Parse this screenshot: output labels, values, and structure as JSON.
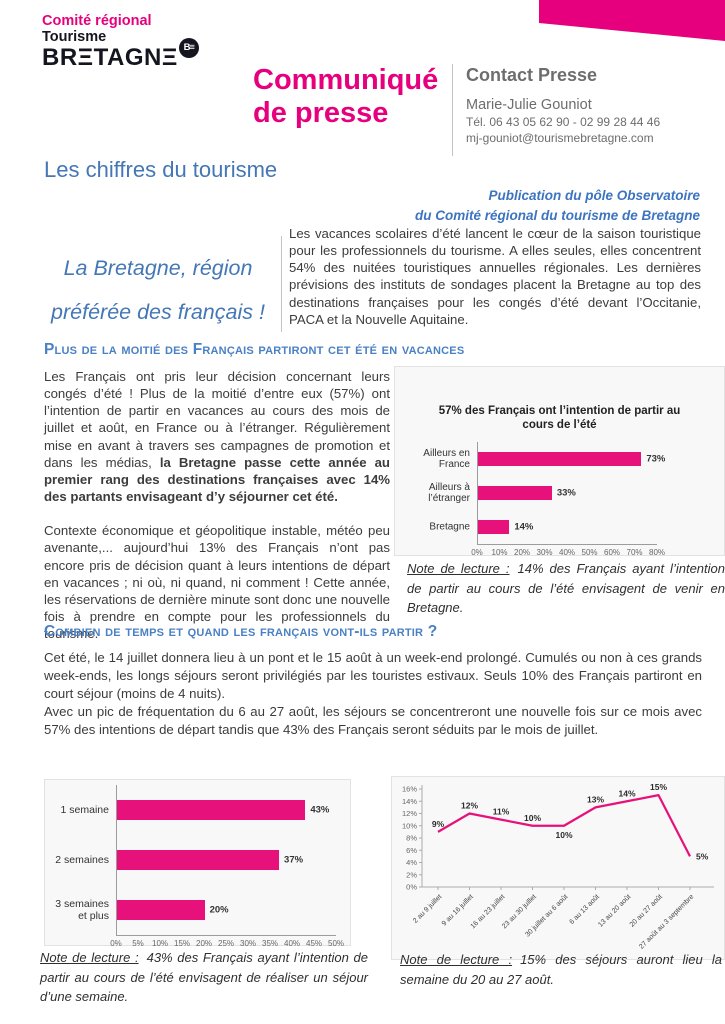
{
  "brand": {
    "region_label": "Comité régional",
    "sector_label": "Tourisme",
    "wordmark": "BRΞTAGNΞ",
    "badge": "B≡"
  },
  "doc_type": {
    "line1": "Communiqué",
    "line2": "de presse"
  },
  "contact": {
    "heading": "Contact Presse",
    "name": "Marie-Julie Gouniot",
    "phone": "Tél. 06 43 05 62 90 - 02 99 28 44 46",
    "email": "mj-gouniot@tourismebretagne.com"
  },
  "title": "Les chiffres du tourisme",
  "publication": {
    "line1": "Publication du pôle Observatoire",
    "line2": "du Comité régional du tourisme de Bretagne"
  },
  "pullquote": {
    "line1": "La Bretagne, région",
    "line2": "préférée des français !"
  },
  "intro": "Les vacances scolaires d’été lancent le cœur de la saison touristique pour les professionnels du tourisme. A elles seules, elles concentrent 54% des nuitées touristiques annuelles régionales. Les dernières prévisions des instituts de sondages placent la Bretagne au top des destinations françaises pour les congés d’été devant l’Occitanie, PACA et la Nouvelle Aquitaine.",
  "section1": {
    "heading": "Plus de la moitié des Français partiront cet été en vacances",
    "para1_normal": "Les Français ont pris leur décision concernant leurs congés d’été ! Plus de la moitié d’entre eux (57%) ont l’intention de partir en vacances au cours des mois de juillet et août, en France ou à l’étranger. Régulièrement mise en avant à travers ses campagnes de promotion et dans les médias, ",
    "para1_bold": "la Bretagne passe cette année au premier rang des destinations françaises avec 14% des partants envisageant d’y séjourner cet été.",
    "para2": "Contexte économique et géopolitique instable, météo peu avenante,... aujourd’hui 13% des Français n’ont pas encore pris de décision quant à leurs intentions de départ en vacances ; ni où, ni quand, ni comment ! Cette année, les réservations de dernière minute sont donc une nouvelle fois à prendre en compte pour les professionnels du tourisme.",
    "note": {
      "label": "Note de lecture :",
      "text": "14% des Français ayant l’intention de partir au cours de l’été envisagent de venir en Bretagne."
    }
  },
  "section2": {
    "heading": "Combien de temps et quand les français vont-ils partir ?",
    "para1": "Cet été, le 14 juillet donnera lieu à un pont et le 15 août à un week-end prolongé. Cumulés ou non à ces grands week-ends, les longs séjours seront privilégiés par les touristes estivaux. Seuls 10% des Français partiront en court séjour (moins de 4 nuits).",
    "para2": "Avec un pic de fréquentation du 6 au 27 août, les séjours se concentreront une nouvelle fois sur ce mois avec 57% des intentions de départ tandis que 43% des Français seront séduits par le mois de juillet.",
    "note_left": {
      "label": "Note de lecture :",
      "text": "43% des Français ayant l’intention de partir au cours de l’été envisagent de réaliser un séjour d’une semaine."
    },
    "note_right": {
      "label": "Note de lecture :",
      "text": "15% des séjours auront lieu la semaine du 20 au 27 août."
    }
  },
  "colors": {
    "brand_pink": "#E6007E",
    "chart_pink": "#E6117B",
    "heading_blue": "#4377B5",
    "subheading_blue": "#4A80C4",
    "contact_gray": "#6D6D6D"
  },
  "chart_data": [
    {
      "type": "bar",
      "orientation": "horizontal",
      "title": "57% des Français ont l’intention de partir au cours de l’été",
      "categories": [
        "Ailleurs en France",
        "Ailleurs à l’étranger",
        "Bretagne"
      ],
      "values": [
        73,
        33,
        14
      ],
      "labels": [
        "73%",
        "33%",
        "14%"
      ],
      "xlim": [
        0,
        80
      ],
      "xticks": [
        "0%",
        "10%",
        "20%",
        "30%",
        "40%",
        "50%",
        "60%",
        "70%",
        "80%"
      ],
      "grid": false,
      "legend": "none",
      "bar_color": "#E6117B"
    },
    {
      "type": "bar",
      "orientation": "horizontal",
      "title": "",
      "categories": [
        "1 semaine",
        "2 semaines",
        "3 semaines et plus"
      ],
      "values": [
        43,
        37,
        20
      ],
      "labels": [
        "43%",
        "37%",
        "20%"
      ],
      "xlim": [
        0,
        50
      ],
      "xticks": [
        "0%",
        "5%",
        "10%",
        "15%",
        "20%",
        "25%",
        "30%",
        "35%",
        "40%",
        "45%",
        "50%"
      ],
      "grid": false,
      "legend": "none",
      "bar_color": "#E6117B"
    },
    {
      "type": "line",
      "title": "",
      "x": [
        "2 au 9 juillet",
        "9 au 16 juillet",
        "16 au 23 juillet",
        "23 au 30 juillet",
        "30 juillet au 6 août",
        "6 au 13 août",
        "13 au 20 août",
        "20 au 27 août",
        "27 août au 3 septembre"
      ],
      "values": [
        9,
        12,
        11,
        10,
        10,
        13,
        14,
        15,
        5
      ],
      "labels": [
        "9%",
        "12%",
        "11%",
        "10%",
        "10%",
        "13%",
        "14%",
        "15%",
        "5%"
      ],
      "ylim": [
        0,
        16
      ],
      "yticks": [
        "0%",
        "2%",
        "4%",
        "6%",
        "8%",
        "10%",
        "12%",
        "14%",
        "16%"
      ],
      "grid": false,
      "legend": "none",
      "line_color": "#E6117B",
      "layout": {
        "label_below": [
          4
        ],
        "label_right": [
          8
        ],
        "xlabel_rotation": -45
      }
    }
  ]
}
